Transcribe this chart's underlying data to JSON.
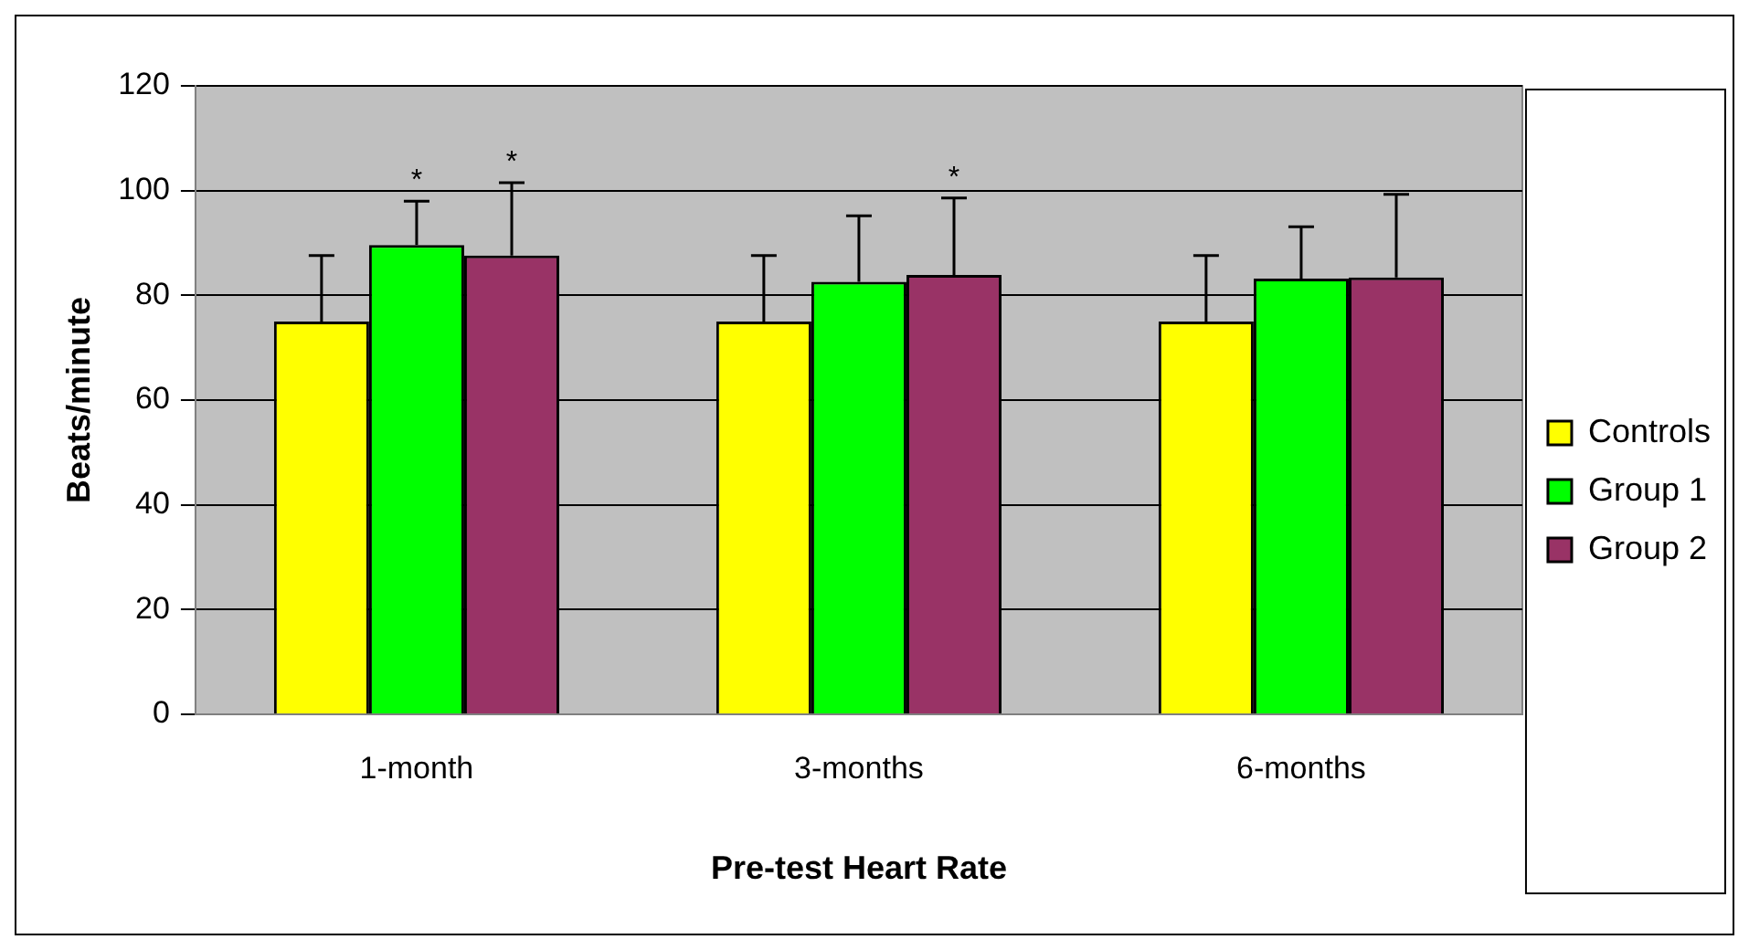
{
  "chart_data": {
    "type": "bar",
    "xlabel": "Pre-test Heart Rate",
    "ylabel": "Beats/minute",
    "categories": [
      "1-month",
      "3-months",
      "6-months"
    ],
    "series": [
      {
        "name": "Controls",
        "color": "#ffff00",
        "values": [
          75,
          75,
          75
        ],
        "errors": [
          [
            75,
            87.6
          ],
          [
            75,
            87.6
          ],
          [
            75,
            87.6
          ]
        ]
      },
      {
        "name": "Group 1",
        "color": "#00ff00",
        "values": [
          89.6,
          82.6,
          83.2
        ],
        "errors": [
          [
            89.6,
            98
          ],
          [
            82.6,
            95.2
          ],
          [
            83.2,
            93.1
          ]
        ],
        "value_labels": [
          "*",
          null,
          null
        ]
      },
      {
        "name": "Group 2",
        "color": "#993366",
        "values": [
          87.6,
          83.9,
          83.4
        ],
        "errors": [
          [
            87.6,
            101.5
          ],
          [
            83.9,
            98.6
          ],
          [
            83.4,
            99.3
          ]
        ],
        "value_labels": [
          "*",
          "*",
          null
        ]
      }
    ],
    "ylim": [
      0,
      120
    ],
    "yticks": [
      0,
      20,
      40,
      60,
      80,
      100,
      120
    ],
    "grid": "y",
    "legend": "right"
  }
}
